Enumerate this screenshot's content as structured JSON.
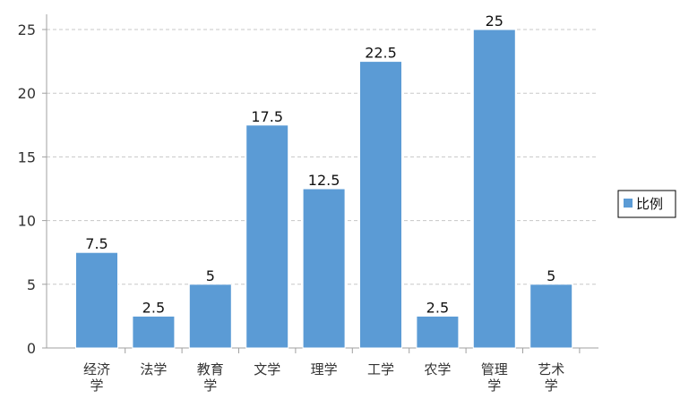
{
  "chart_data": {
    "type": "bar",
    "categories": [
      "经济学",
      "法学",
      "教育学",
      "文学",
      "理学",
      "工学",
      "农学",
      "管理学",
      "艺术学"
    ],
    "category_lines": [
      [
        "经济",
        "学"
      ],
      [
        "法学"
      ],
      [
        "教育",
        "学"
      ],
      [
        "文学"
      ],
      [
        "理学"
      ],
      [
        "工学"
      ],
      [
        "农学"
      ],
      [
        "管理",
        "学"
      ],
      [
        "艺术",
        "学"
      ]
    ],
    "series": [
      {
        "name": "比例",
        "values": [
          7.5,
          2.5,
          5,
          17.5,
          12.5,
          22.5,
          2.5,
          25,
          5
        ]
      }
    ],
    "ylim": [
      0,
      25
    ],
    "yticks": [
      0,
      5,
      10,
      15,
      20,
      25
    ],
    "grid": true,
    "legend_position": "right",
    "colors": {
      "bar": "#5B9BD5",
      "grid": "#C8C8C8",
      "axis": "#A0A0A0"
    }
  }
}
